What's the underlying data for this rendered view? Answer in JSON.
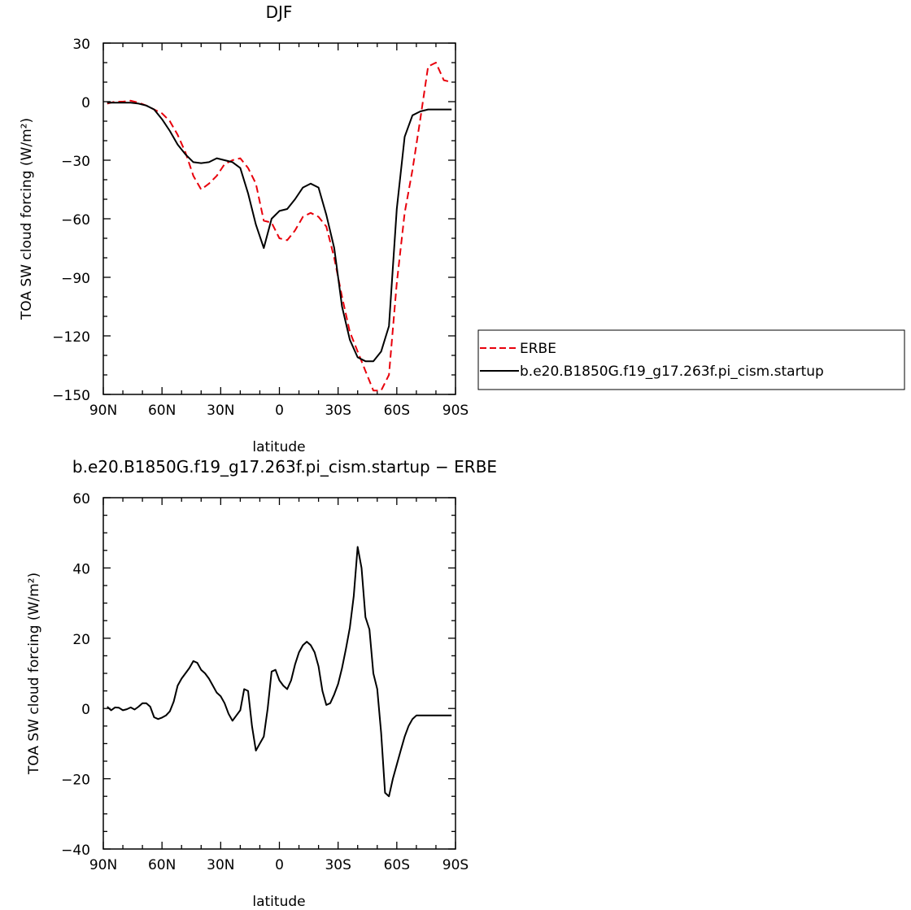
{
  "chart_data": [
    {
      "type": "line",
      "title": "DJF",
      "xlabel": "latitude",
      "ylabel": "TOA SW cloud forcing (W/m²)",
      "xlim": [
        90,
        -90
      ],
      "ylim": [
        -150,
        30
      ],
      "x_ticks": [
        {
          "value": 90,
          "label": "90N"
        },
        {
          "value": 60,
          "label": "60N"
        },
        {
          "value": 30,
          "label": "30N"
        },
        {
          "value": 0,
          "label": "0"
        },
        {
          "value": -30,
          "label": "30S"
        },
        {
          "value": -60,
          "label": "60S"
        },
        {
          "value": -90,
          "label": "90S"
        }
      ],
      "y_ticks": [
        30,
        0,
        -30,
        -60,
        -90,
        -120,
        -150
      ],
      "y_tick_labels": [
        "30",
        "0",
        "−30",
        "−60",
        "−90",
        "−120",
        "−150"
      ],
      "legend_position": "outside-right",
      "series": [
        {
          "name": "ERBE",
          "color": "#e8000b",
          "dash": "dashed",
          "x": [
            88,
            84,
            80,
            76,
            72,
            68,
            64,
            60,
            56,
            52,
            48,
            44,
            40,
            36,
            32,
            28,
            24,
            20,
            16,
            12,
            8,
            4,
            0,
            -4,
            -8,
            -12,
            -16,
            -20,
            -24,
            -28,
            -32,
            -36,
            -40,
            -44,
            -48,
            -52,
            -56,
            -60,
            -64,
            -68,
            -72,
            -76,
            -80,
            -84,
            -88
          ],
          "y": [
            -1,
            0,
            0,
            0.5,
            -0.5,
            -2,
            -4,
            -6,
            -10,
            -17,
            -26,
            -38,
            -45,
            -42,
            -38,
            -32,
            -30,
            -29,
            -34,
            -42,
            -61,
            -62,
            -70,
            -71,
            -66,
            -59,
            -57,
            -59,
            -64,
            -80,
            -100,
            -118,
            -128,
            -138,
            -148,
            -148,
            -140,
            -93,
            -57,
            -35,
            -9,
            18,
            20,
            11,
            10
          ]
        },
        {
          "name": "b.e20.B1850G.f19_g17.263f.pi_cism.startup",
          "color": "#000000",
          "dash": "solid",
          "x": [
            88,
            84,
            80,
            76,
            72,
            68,
            64,
            60,
            56,
            52,
            48,
            44,
            40,
            36,
            32,
            28,
            24,
            20,
            16,
            12,
            8,
            4,
            0,
            -4,
            -8,
            -12,
            -16,
            -20,
            -24,
            -28,
            -32,
            -36,
            -40,
            -44,
            -48,
            -52,
            -56,
            -60,
            -64,
            -68,
            -72,
            -76,
            -80,
            -84,
            -88
          ],
          "y": [
            -0.5,
            -0.5,
            -0.5,
            -0.5,
            -1,
            -2,
            -4,
            -9,
            -15,
            -22,
            -27,
            -31,
            -31.5,
            -31,
            -29,
            -30,
            -31,
            -34,
            -47,
            -63,
            -75,
            -60,
            -56,
            -55,
            -50,
            -44,
            -42,
            -44,
            -58,
            -75,
            -105,
            -122,
            -131,
            -133,
            -133,
            -128,
            -115,
            -55,
            -18,
            -7,
            -5,
            -4,
            -4,
            -4,
            -4
          ]
        }
      ]
    },
    {
      "type": "line",
      "title": "b.e20.B1850G.f19_g17.263f.pi_cism.startup − ERBE",
      "xlabel": "latitude",
      "ylabel": "TOA SW cloud forcing (W/m²)",
      "xlim": [
        90,
        -90
      ],
      "ylim": [
        -40,
        60
      ],
      "x_ticks": [
        {
          "value": 90,
          "label": "90N"
        },
        {
          "value": 60,
          "label": "60N"
        },
        {
          "value": 30,
          "label": "30N"
        },
        {
          "value": 0,
          "label": "0"
        },
        {
          "value": -30,
          "label": "30S"
        },
        {
          "value": -60,
          "label": "60S"
        },
        {
          "value": -90,
          "label": "90S"
        }
      ],
      "y_ticks": [
        60,
        40,
        20,
        0,
        -20,
        -40
      ],
      "y_tick_labels": [
        "60",
        "40",
        "20",
        "0",
        "−20",
        "−40"
      ],
      "series": [
        {
          "color": "#000000",
          "dash": "solid",
          "x": [
            88,
            86,
            84,
            82,
            80,
            78,
            76,
            74,
            72,
            70,
            68,
            66,
            64,
            62,
            60,
            58,
            56,
            54,
            52,
            50,
            48,
            46,
            44,
            42,
            40,
            38,
            36,
            34,
            32,
            30,
            28,
            26,
            24,
            22,
            20,
            18,
            16,
            14,
            12,
            10,
            8,
            6,
            4,
            2,
            0,
            -2,
            -4,
            -6,
            -8,
            -10,
            -12,
            -14,
            -16,
            -18,
            -20,
            -22,
            -24,
            -26,
            -28,
            -30,
            -32,
            -34,
            -36,
            -38,
            -40,
            -42,
            -44,
            -46,
            -48,
            -50,
            -52,
            -54,
            -56,
            -58,
            -60,
            -62,
            -64,
            -66,
            -68,
            -70,
            -72,
            -74,
            -76,
            -78,
            -80,
            -82,
            -84,
            -86,
            -88
          ],
          "y": [
            0.5,
            -0.5,
            0.3,
            0.2,
            -0.5,
            -0.2,
            0.3,
            -0.3,
            0.5,
            1.5,
            1.5,
            0.5,
            -2.5,
            -3,
            -2.6,
            -2,
            -0.8,
            2,
            6.5,
            8.5,
            10,
            11.5,
            13.5,
            13,
            11,
            10,
            8.5,
            6.5,
            4.5,
            3.5,
            1.5,
            -1.5,
            -3.5,
            -2,
            -0.5,
            5.5,
            5,
            -5,
            -12,
            -10,
            -8,
            0,
            10.5,
            11,
            8,
            6.5,
            5.5,
            8,
            12.5,
            16,
            18,
            19,
            18,
            16,
            12,
            5,
            1,
            1.5,
            4,
            7,
            11.5,
            17,
            23,
            32,
            46,
            40,
            26,
            22.5,
            10,
            5.5,
            -7,
            -24,
            -25,
            -20,
            -16,
            -12,
            -8,
            -5,
            -3,
            -2,
            -2,
            -2,
            -2,
            -2,
            -2,
            -2,
            -2,
            -2,
            -2
          ]
        }
      ]
    }
  ]
}
